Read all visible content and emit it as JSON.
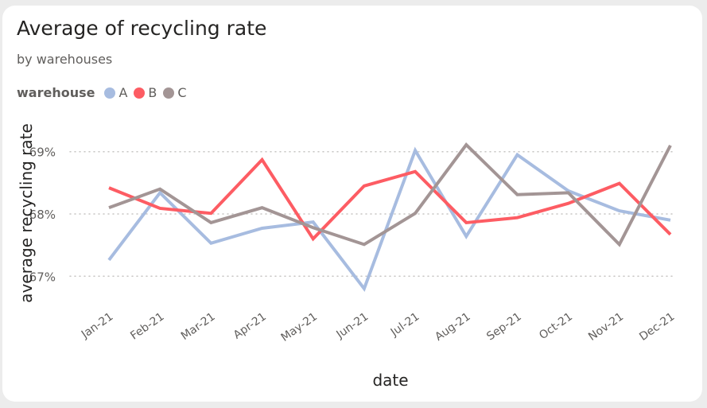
{
  "chart_data": {
    "type": "line",
    "title": "Average of recycling rate",
    "subtitle": "by warehouses",
    "legend_title": "warehouse",
    "legend_position": "top-left",
    "xlabel": "date",
    "ylabel": "average recycling rate",
    "categories": [
      "Jan-21",
      "Feb-21",
      "Mar-21",
      "Apr-21",
      "May-21",
      "Jun-21",
      "Jul-21",
      "Aug-21",
      "Sep-21",
      "Oct-21",
      "Nov-21",
      "Dec-21"
    ],
    "yticks": [
      {
        "value": 67,
        "label": "67%"
      },
      {
        "value": 68,
        "label": "68%"
      },
      {
        "value": 69,
        "label": "69%"
      }
    ],
    "ylim": [
      66.3,
      69.5
    ],
    "grid": true,
    "series": [
      {
        "name": "A",
        "color": "#a7bce0",
        "values": [
          67.26,
          68.34,
          67.53,
          67.77,
          67.87,
          66.8,
          69.02,
          67.64,
          68.95,
          68.37,
          68.05,
          67.9
        ]
      },
      {
        "name": "B",
        "color": "#fd5c63",
        "values": [
          68.42,
          68.09,
          68.01,
          68.87,
          67.6,
          68.45,
          68.68,
          67.86,
          67.94,
          68.17,
          68.49,
          67.67
        ]
      },
      {
        "name": "C",
        "color": "#a39595",
        "values": [
          68.1,
          68.4,
          67.86,
          68.1,
          67.78,
          67.51,
          68.01,
          69.11,
          68.31,
          68.34,
          67.51,
          69.1
        ]
      }
    ]
  }
}
